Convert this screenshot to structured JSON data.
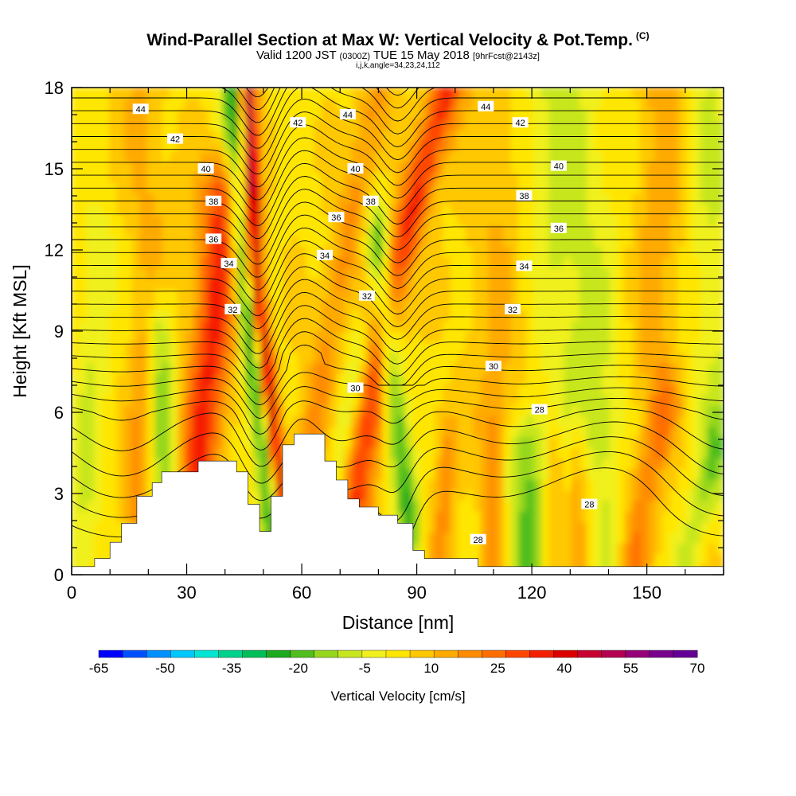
{
  "header": {
    "title": "Wind-Parallel Section at Max W: Vertical Velocity & Pot.Temp.",
    "title_mark": "(C)",
    "subtitle_a": "Valid 1200 JST",
    "subtitle_b": "(0300Z)",
    "subtitle_c": "TUE 15 May 2018",
    "subtitle_d": "[9hrFcst@2143z]",
    "subtitle2": "i,j,k,angle=34,23,24,112"
  },
  "chart_data": {
    "type": "heatmap",
    "xlabel": "Distance [nm]",
    "ylabel": "Height [Kft MSL]",
    "xlim": [
      0,
      170
    ],
    "ylim": [
      0,
      18
    ],
    "xticks": [
      "0",
      "30",
      "60",
      "90",
      "120",
      "150"
    ],
    "xtick_values": [
      0,
      30,
      60,
      90,
      120,
      150
    ],
    "yticks": [
      "0",
      "3",
      "6",
      "9",
      "12",
      "15",
      "18"
    ],
    "ytick_values": [
      0,
      3,
      6,
      9,
      12,
      15,
      18
    ],
    "colorbar": {
      "title": "Vertical Velocity [cm/s]",
      "labels": [
        "-65",
        "-50",
        "-35",
        "-20",
        "-5",
        "10",
        "25",
        "40",
        "55",
        "70"
      ],
      "values": [
        -65,
        -50,
        -35,
        -20,
        -5,
        10,
        25,
        40,
        55,
        70
      ],
      "colors": [
        "#0000ff",
        "#0050ff",
        "#0090ff",
        "#00c8ff",
        "#00e6d2",
        "#00d28c",
        "#00be5a",
        "#1eaa1e",
        "#50be1e",
        "#96d71e",
        "#c8e61e",
        "#f0f01e",
        "#ffe600",
        "#ffc800",
        "#ffaa00",
        "#ff8c00",
        "#ff6e00",
        "#ff4600",
        "#f51e00",
        "#dc0000",
        "#c80032",
        "#b40050",
        "#960078",
        "#78008c",
        "#640096"
      ]
    },
    "terrain": {
      "x": [
        0,
        6,
        6,
        10,
        10,
        13,
        13,
        17,
        17,
        21,
        21,
        23.5,
        23.5,
        27,
        27,
        33,
        33,
        43,
        43,
        46,
        46,
        49,
        49,
        52,
        52,
        55,
        55,
        58,
        58,
        61,
        61,
        66,
        66,
        69,
        69,
        72,
        72,
        75,
        75,
        80,
        80,
        85,
        85,
        89,
        89,
        92,
        92,
        106,
        106,
        110,
        110,
        170
      ],
      "y": [
        0.3,
        0.3,
        0.6,
        0.6,
        1.2,
        1.2,
        1.9,
        1.9,
        2.9,
        2.9,
        3.4,
        3.4,
        3.8,
        3.8,
        3.8,
        3.8,
        4.2,
        4.2,
        3.8,
        3.8,
        2.6,
        2.6,
        1.6,
        1.6,
        2.9,
        2.9,
        4.8,
        4.8,
        5.2,
        5.2,
        5.2,
        5.2,
        4.2,
        4.2,
        3.5,
        3.5,
        2.8,
        2.8,
        2.5,
        2.5,
        2.2,
        2.2,
        1.9,
        1.9,
        0.9,
        0.9,
        0.6,
        0.6,
        0.3,
        0.3,
        0.3,
        0.3
      ]
    },
    "w_features": [
      {
        "x": [
          56,
          48,
          46
        ],
        "y": [
          1.2,
          11,
          18
        ],
        "halfwidth": 1.5,
        "w": 48
      },
      {
        "x": [
          53,
          45,
          42
        ],
        "y": [
          1.5,
          11,
          18
        ],
        "halfwidth": 2.1,
        "w": -32
      },
      {
        "x": [
          33,
          37,
          40
        ],
        "y": [
          4,
          9,
          14
        ],
        "halfwidth": 4,
        "w": 30
      },
      {
        "x": [
          25,
          24,
          23
        ],
        "y": [
          3.2,
          6.5,
          9
        ],
        "halfwidth": 2.6,
        "w": -20
      },
      {
        "x": [
          17,
          18,
          19
        ],
        "y": [
          2.5,
          5,
          7.5
        ],
        "halfwidth": 2.4,
        "w": 14
      },
      {
        "x": [
          74,
          84,
          98
        ],
        "y": [
          3,
          11,
          18
        ],
        "halfwidth": 3.2,
        "w": 30
      },
      {
        "x": [
          88,
          83,
          80
        ],
        "y": [
          2,
          8,
          12
        ],
        "halfwidth": 2.2,
        "w": -28
      },
      {
        "x": [
          62,
          70,
          80
        ],
        "y": [
          5,
          11,
          18
        ],
        "halfwidth": 3,
        "w": 14
      },
      {
        "x": [
          69,
          72,
          75
        ],
        "y": [
          3,
          6,
          8
        ],
        "halfwidth": 2.2,
        "w": -14
      },
      {
        "x": [
          119,
          119,
          119
        ],
        "y": [
          0.5,
          2.5,
          4.5
        ],
        "halfwidth": 3.5,
        "w": -22
      },
      {
        "x": [
          96,
          97,
          98
        ],
        "y": [
          0.5,
          2.5,
          4.5
        ],
        "halfwidth": 2,
        "w": 14
      },
      {
        "x": [
          110,
          110,
          110
        ],
        "y": [
          0.5,
          2.5,
          4.5
        ],
        "halfwidth": 2,
        "w": 14
      },
      {
        "x": [
          147,
          150,
          155
        ],
        "y": [
          0.5,
          3.5,
          6
        ],
        "halfwidth": 2.8,
        "w": 16
      },
      {
        "x": [
          140,
          139,
          138
        ],
        "y": [
          0.5,
          2.5,
          4.5
        ],
        "halfwidth": 2.5,
        "w": -10
      },
      {
        "x": [
          160,
          164,
          168
        ],
        "y": [
          0.5,
          2.5,
          4.5
        ],
        "halfwidth": 2.5,
        "w": -12
      },
      {
        "x": [
          124,
          125,
          126
        ],
        "y": [
          0.5,
          2.5,
          4.5
        ],
        "halfwidth": 1.6,
        "w": 10
      },
      {
        "x": [
          132,
          132,
          132
        ],
        "y": [
          0.5,
          2.5,
          4.5
        ],
        "halfwidth": 1.6,
        "w": 10
      },
      {
        "x": [
          136,
          130,
          126
        ],
        "y": [
          6,
          12,
          18
        ],
        "halfwidth": 9,
        "w": -12
      },
      {
        "x": [
          112,
          112,
          112
        ],
        "y": [
          6,
          12,
          18
        ],
        "halfwidth": 6,
        "w": 8
      },
      {
        "x": [
          150,
          153,
          155
        ],
        "y": [
          6,
          12,
          18
        ],
        "halfwidth": 5,
        "w": 10
      },
      {
        "x": [
          170,
          168,
          166
        ],
        "y": [
          4,
          11,
          18
        ],
        "halfwidth": 5,
        "w": -10
      },
      {
        "x": [
          3,
          5,
          7
        ],
        "y": [
          1,
          7,
          12
        ],
        "halfwidth": 3,
        "w": -10
      },
      {
        "x": [
          22,
          20,
          18
        ],
        "y": [
          10,
          14,
          18
        ],
        "halfwidth": 4,
        "w": 8
      }
    ],
    "theta_labels": [
      {
        "text": "44",
        "x": 18,
        "y": 17.2
      },
      {
        "text": "44",
        "x": 72,
        "y": 17.0
      },
      {
        "text": "44",
        "x": 108,
        "y": 17.3
      },
      {
        "text": "42",
        "x": 27,
        "y": 16.1
      },
      {
        "text": "42",
        "x": 59,
        "y": 16.7
      },
      {
        "text": "42",
        "x": 117,
        "y": 16.7
      },
      {
        "text": "40",
        "x": 35,
        "y": 15.0
      },
      {
        "text": "40",
        "x": 74,
        "y": 15.0
      },
      {
        "text": "40",
        "x": 127,
        "y": 15.1
      },
      {
        "text": "38",
        "x": 37,
        "y": 13.8
      },
      {
        "text": "38",
        "x": 78,
        "y": 13.8
      },
      {
        "text": "38",
        "x": 118,
        "y": 14.0
      },
      {
        "text": "36",
        "x": 37,
        "y": 12.4
      },
      {
        "text": "36",
        "x": 69,
        "y": 13.2
      },
      {
        "text": "36",
        "x": 127,
        "y": 12.8
      },
      {
        "text": "34",
        "x": 41,
        "y": 11.5
      },
      {
        "text": "34",
        "x": 66,
        "y": 11.8
      },
      {
        "text": "34",
        "x": 118,
        "y": 11.4
      },
      {
        "text": "32",
        "x": 42,
        "y": 9.8
      },
      {
        "text": "32",
        "x": 77,
        "y": 10.3
      },
      {
        "text": "32",
        "x": 115,
        "y": 9.8
      },
      {
        "text": "30",
        "x": 74,
        "y": 6.9
      },
      {
        "text": "30",
        "x": 110,
        "y": 7.7
      },
      {
        "text": "28",
        "x": 122,
        "y": 6.1
      },
      {
        "text": "28",
        "x": 135,
        "y": 2.6
      },
      {
        "text": "28",
        "x": 106,
        "y": 1.3
      }
    ]
  }
}
